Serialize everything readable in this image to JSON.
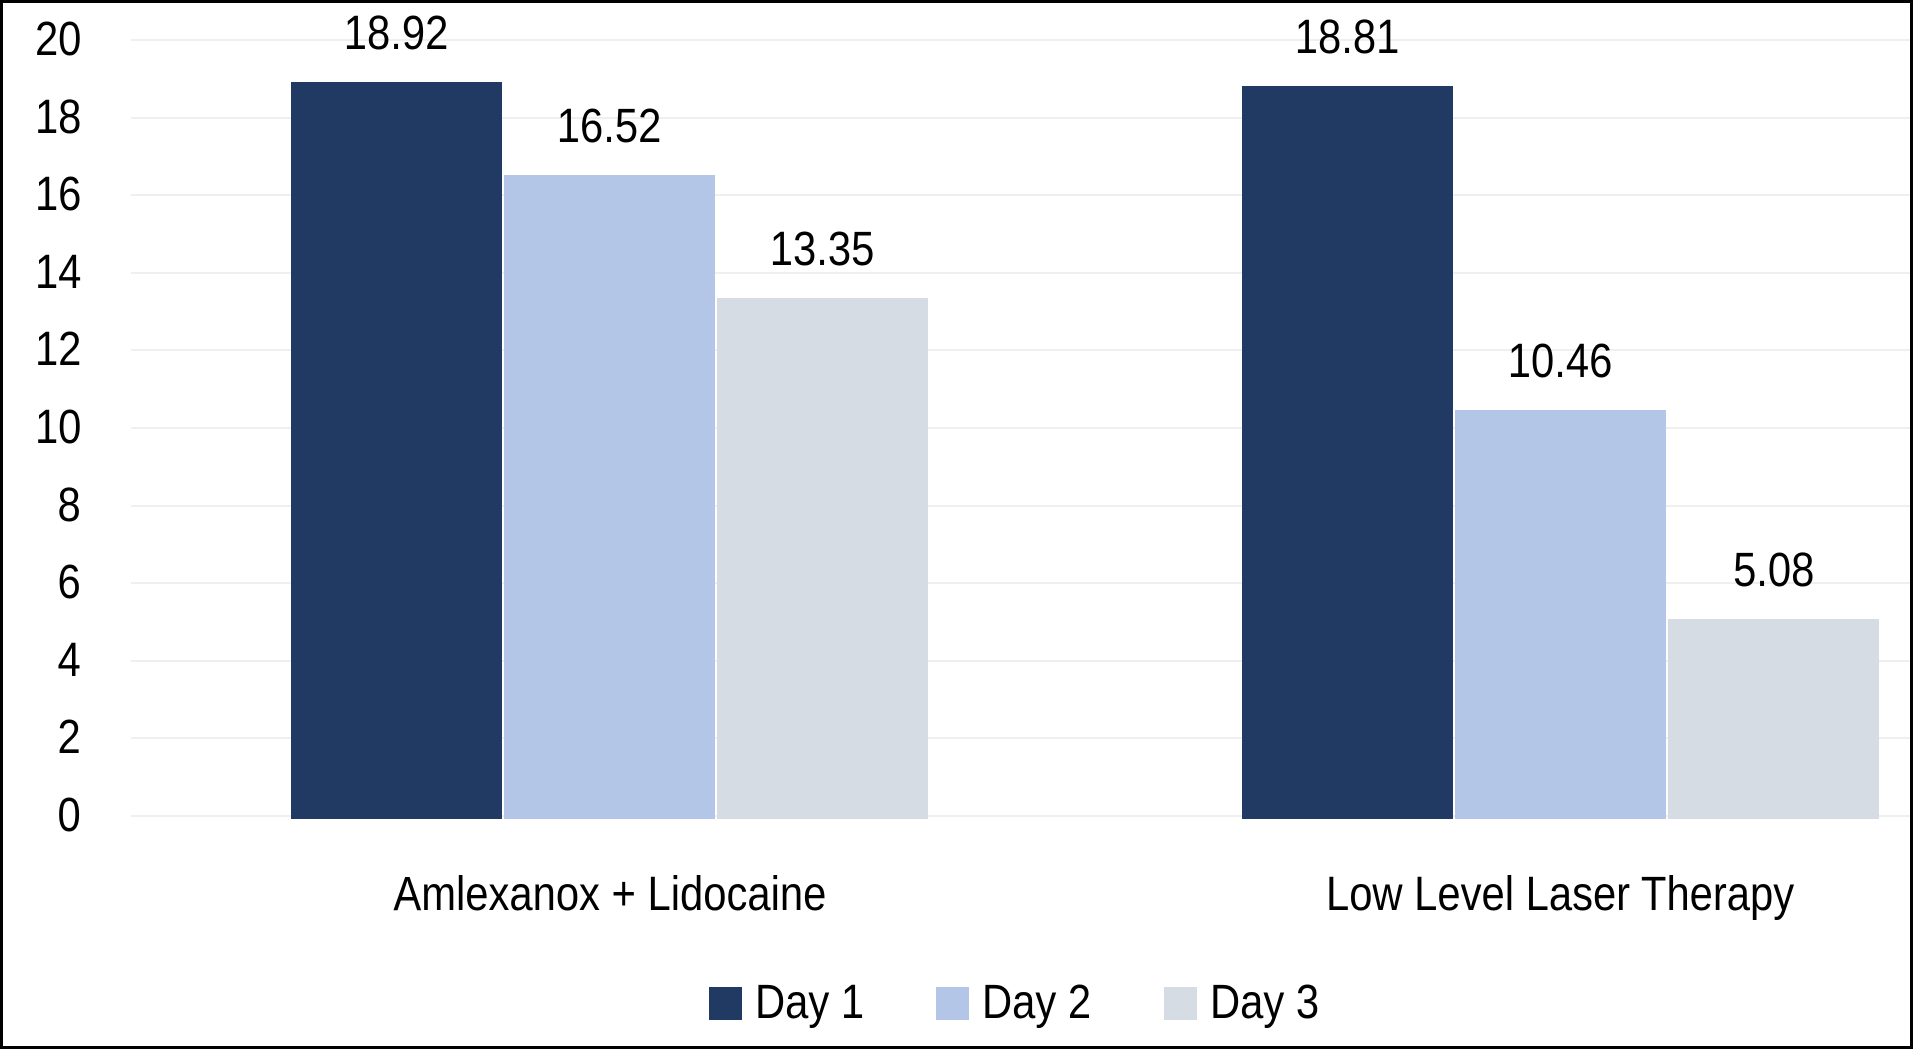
{
  "figure": {
    "kind": "grouped-bar-chart-figure",
    "background": "#ffffff",
    "border_color": "#000000",
    "text_color": "#000000"
  },
  "chart_data": {
    "type": "bar",
    "categories": [
      "Amlexanox + Lidocaine",
      "Low Level Laser Therapy"
    ],
    "series": [
      {
        "name": "Day 1",
        "color": "#203A63",
        "values": [
          18.92,
          18.81
        ]
      },
      {
        "name": "Day 2",
        "color": "#B4C6E7",
        "values": [
          16.52,
          10.46
        ]
      },
      {
        "name": "Day 3",
        "color": "#D6DCE4",
        "values": [
          13.35,
          5.08
        ]
      }
    ],
    "title": "",
    "xlabel": "",
    "ylabel": "",
    "ylim": [
      0,
      20
    ],
    "yticks": [
      0,
      2,
      4,
      6,
      8,
      10,
      12,
      14,
      16,
      18,
      20
    ],
    "grid": "horizontal",
    "gridline_color": "#EFEFEF",
    "value_label_decimals": 2,
    "legend_position": "bottom"
  }
}
